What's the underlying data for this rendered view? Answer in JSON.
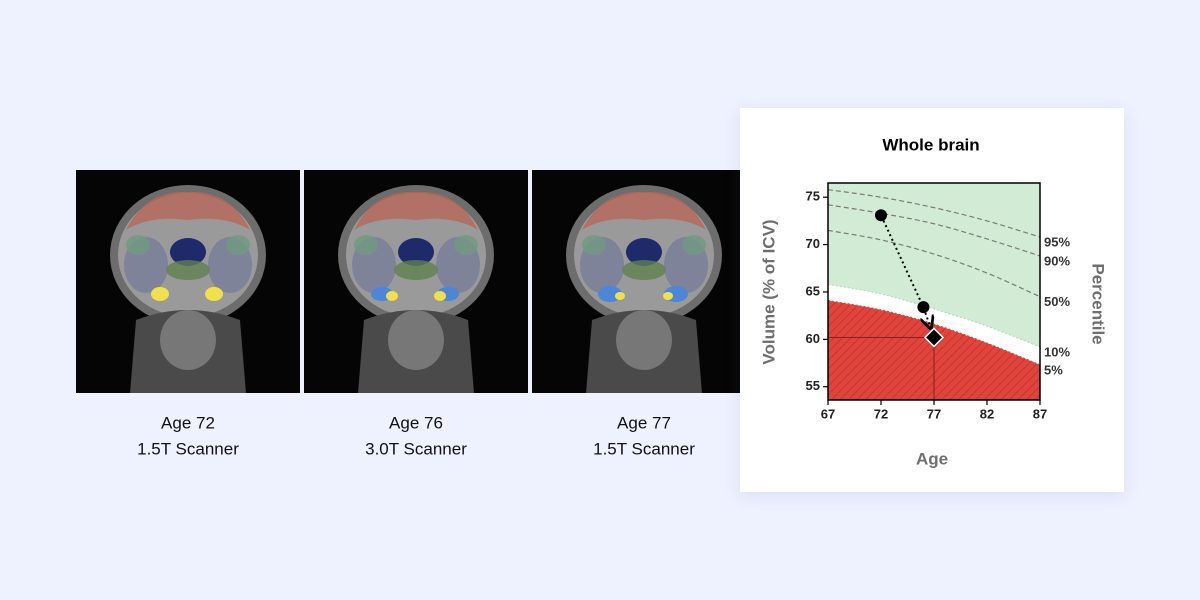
{
  "images": [
    {
      "age": "Age 72",
      "scanner": "1.5T Scanner"
    },
    {
      "age": "Age 76",
      "scanner": "3.0T Scanner"
    },
    {
      "age": "Age 77",
      "scanner": "1.5T Scanner"
    }
  ],
  "chart_data": {
    "type": "line",
    "title": "Whole brain",
    "x_label": "Age",
    "y_label": "Volume (% of ICV)",
    "y2_label": "Percentile",
    "xlim": [
      67,
      87
    ],
    "xticks": [
      67,
      72,
      77,
      82,
      87
    ],
    "ylim": [
      53.6,
      76.5
    ],
    "yticks": [
      55,
      60,
      65,
      70,
      75
    ],
    "x": [
      67,
      72,
      77,
      82,
      87
    ],
    "series": [
      {
        "name": "95%",
        "color": "#7a7a7a",
        "values": [
          75.8,
          75.0,
          73.9,
          72.5,
          70.8
        ]
      },
      {
        "name": "90%",
        "color": "#7a7a7a",
        "values": [
          74.2,
          73.3,
          72.2,
          70.6,
          68.8
        ]
      },
      {
        "name": "50%",
        "color": "#7a7a7a",
        "values": [
          71.5,
          70.5,
          69.0,
          67.0,
          64.5
        ]
      },
      {
        "name": "10%",
        "color": "#b9d8bd",
        "fill": "#d2ebd5",
        "fill_to": "top",
        "values": [
          65.8,
          64.8,
          63.2,
          61.4,
          59.2
        ]
      },
      {
        "name": "5%",
        "color": "#d9443b",
        "fill": "#e0453d",
        "fill_to": "bottom",
        "values": [
          64.1,
          63.1,
          61.6,
          59.6,
          57.3
        ]
      }
    ],
    "points": {
      "color": "#000000",
      "x": [
        72,
        76,
        77
      ],
      "values": [
        73.1,
        63.4,
        60.2
      ]
    }
  }
}
